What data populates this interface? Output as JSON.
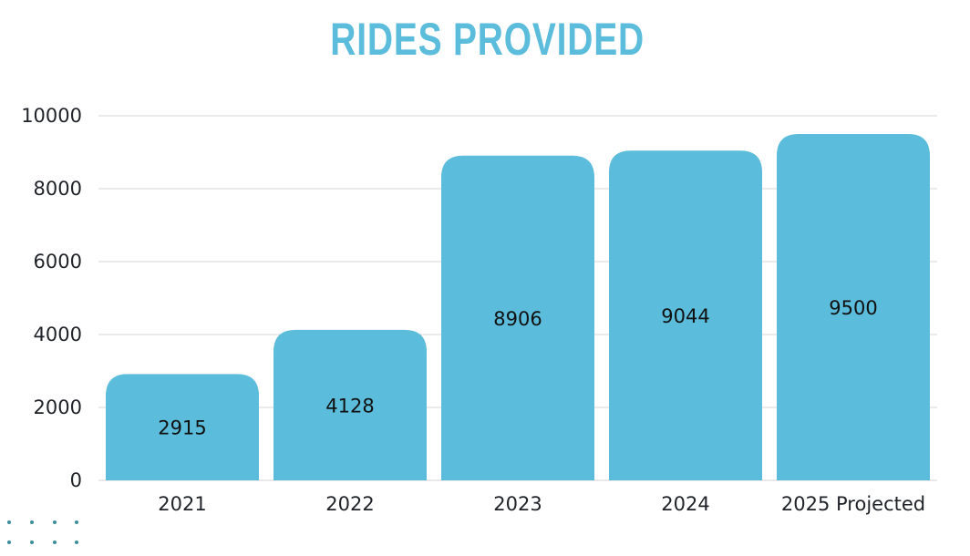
{
  "chart_data": {
    "type": "bar",
    "title": "RIDES PROVIDED",
    "categories": [
      "2021",
      "2022",
      "2023",
      "2024",
      "2025 Projected"
    ],
    "values": [
      2915,
      4128,
      8906,
      9044,
      9500
    ],
    "data_labels": [
      "2915",
      "4128",
      "8906",
      "9044",
      "9500"
    ],
    "ylim": [
      0,
      10000
    ],
    "yticks": [
      0,
      2000,
      4000,
      6000,
      8000,
      10000
    ],
    "ytick_labels": [
      "0",
      "2000",
      "4000",
      "6000",
      "8000",
      "10000"
    ],
    "grid": true,
    "legend": "none",
    "xlabel": "",
    "ylabel": "",
    "colors": {
      "bar": "#5bbcdb",
      "title": "#5bbcdb",
      "grid": "#d4d4d4",
      "text": "#1f2328",
      "decor_dots": "#3b8f9c"
    }
  }
}
